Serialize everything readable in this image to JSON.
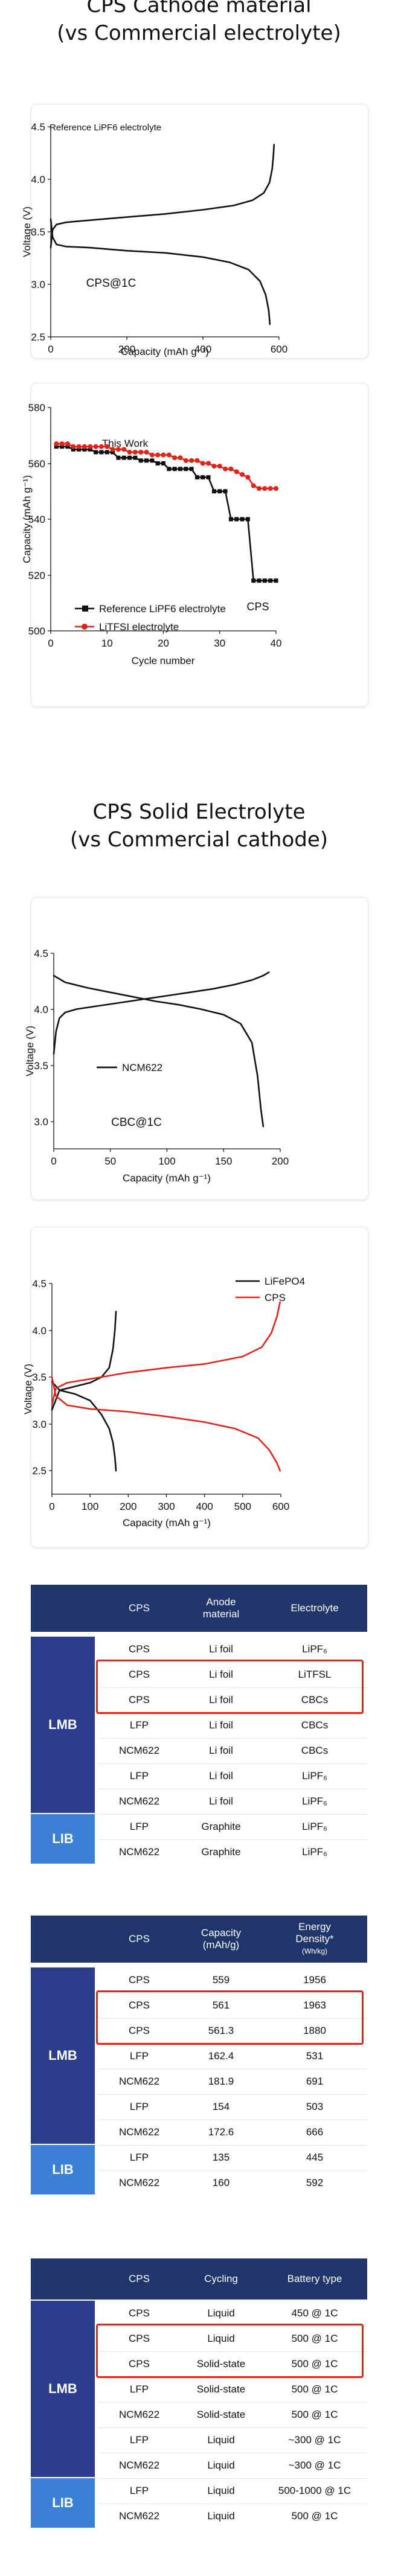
{
  "sections": {
    "cathode_title_1": "CPS Cathode material",
    "cathode_title_2": "(vs Commercial electrolyte)",
    "electrolyte_title_1": "CPS Solid Electrolyte",
    "electrolyte_title_2": "(vs Commercial cathode)"
  },
  "colors": {
    "navy": "#1f356b",
    "lmb": "#2b3d8c",
    "lib": "#3b7fd6",
    "red": "#e2231a",
    "black": "#111111"
  },
  "chart_data": [
    {
      "type": "line",
      "annotations": [
        "Reference LiPF6 electrolyte",
        "CPS@1C"
      ],
      "ylabel": "Voltage (V)",
      "xlabel": "Capacity  (mAh g⁻¹)",
      "xlim": [
        0,
        600
      ],
      "ylim": [
        2.5,
        4.5
      ],
      "xticks": [
        "0",
        "200",
        "400",
        "600"
      ],
      "yticks": [
        "2.5",
        "3.0",
        "3.5",
        "4.0",
        "4.5"
      ],
      "series": [
        {
          "role": "charge",
          "color": "#111111",
          "x": [
            0,
            5,
            15,
            40,
            100,
            200,
            300,
            400,
            480,
            530,
            560,
            575,
            582,
            585,
            587
          ],
          "y": [
            3.35,
            3.52,
            3.57,
            3.59,
            3.61,
            3.64,
            3.67,
            3.71,
            3.75,
            3.8,
            3.87,
            3.97,
            4.1,
            4.22,
            4.33
          ]
        },
        {
          "role": "discharge",
          "color": "#111111",
          "x": [
            0,
            5,
            15,
            40,
            100,
            200,
            300,
            400,
            470,
            520,
            550,
            565,
            573,
            576
          ],
          "y": [
            3.62,
            3.45,
            3.38,
            3.36,
            3.35,
            3.32,
            3.3,
            3.26,
            3.21,
            3.14,
            3.03,
            2.9,
            2.75,
            2.62
          ]
        }
      ]
    },
    {
      "type": "line",
      "title": "This Work",
      "annotations": [
        "CPS"
      ],
      "ylabel": "Capacity (mAh g⁻¹)",
      "xlabel": "Cycle number",
      "xlim": [
        0,
        40
      ],
      "ylim": [
        500,
        580
      ],
      "xticks": [
        "0",
        "10",
        "20",
        "30",
        "40"
      ],
      "yticks": [
        "500",
        "520",
        "540",
        "560",
        "580"
      ],
      "legend": "bottom-left",
      "series": [
        {
          "name": "Reference LiPF6 electrolyte",
          "color": "#111111",
          "marker": "square",
          "x": [
            1,
            2,
            3,
            4,
            5,
            6,
            7,
            8,
            9,
            10,
            11,
            12,
            13,
            14,
            15,
            16,
            17,
            18,
            19,
            20,
            21,
            22,
            23,
            24,
            25,
            26,
            27,
            28,
            29,
            30,
            31,
            32,
            33,
            34,
            35,
            36,
            37,
            38,
            39,
            40
          ],
          "y": [
            566,
            566,
            566,
            565,
            565,
            565,
            565,
            564,
            564,
            564,
            564,
            562,
            562,
            562,
            562,
            561,
            561,
            561,
            560,
            560,
            558,
            558,
            558,
            558,
            558,
            555,
            555,
            555,
            550,
            550,
            550,
            540,
            540,
            540,
            540,
            518,
            518,
            518,
            518,
            518
          ]
        },
        {
          "name": "LiTFSI electrolyte",
          "color": "#e2231a",
          "marker": "circle",
          "x": [
            1,
            2,
            3,
            4,
            5,
            6,
            7,
            8,
            9,
            10,
            11,
            12,
            13,
            14,
            15,
            16,
            17,
            18,
            19,
            20,
            21,
            22,
            23,
            24,
            25,
            26,
            27,
            28,
            29,
            30,
            31,
            32,
            33,
            34,
            35,
            36,
            37,
            38,
            39,
            40
          ],
          "y": [
            567,
            567,
            567,
            566,
            566,
            566,
            566,
            566,
            566,
            566,
            565,
            565,
            565,
            564,
            564,
            564,
            564,
            563,
            563,
            563,
            563,
            562,
            562,
            561,
            561,
            561,
            560,
            560,
            559,
            559,
            558,
            558,
            557,
            556,
            555,
            552,
            551,
            551,
            551,
            551
          ]
        }
      ]
    },
    {
      "type": "line",
      "annotations": [
        "NCM622",
        "CBC@1C"
      ],
      "ylabel": "Voltage (V)",
      "xlabel": "Capacity  (mAh g⁻¹)",
      "xlim": [
        0,
        200
      ],
      "ylim": [
        2.75,
        4.5
      ],
      "xticks": [
        "0",
        "50",
        "100",
        "150",
        "200"
      ],
      "yticks": [
        "3.0",
        "3.5",
        "4.0",
        "4.5"
      ],
      "series": [
        {
          "role": "charge",
          "color": "#111111",
          "x": [
            0,
            2,
            5,
            10,
            20,
            40,
            60,
            80,
            100,
            120,
            140,
            160,
            175,
            185,
            190
          ],
          "y": [
            3.6,
            3.8,
            3.92,
            3.97,
            4.0,
            4.03,
            4.06,
            4.09,
            4.12,
            4.15,
            4.18,
            4.22,
            4.26,
            4.3,
            4.33
          ]
        },
        {
          "role": "discharge",
          "color": "#111111",
          "x": [
            0,
            10,
            30,
            50,
            70,
            90,
            110,
            130,
            150,
            165,
            175,
            180,
            183,
            185
          ],
          "y": [
            4.3,
            4.24,
            4.19,
            4.15,
            4.11,
            4.07,
            4.04,
            4.0,
            3.95,
            3.87,
            3.7,
            3.4,
            3.1,
            2.95
          ]
        }
      ]
    },
    {
      "type": "line",
      "ylabel": "Voltage (V)",
      "xlabel": "Capacity  (mAh g⁻¹)",
      "xlim": [
        0,
        600
      ],
      "ylim": [
        2.25,
        4.5
      ],
      "xticks": [
        "0",
        "100",
        "200",
        "300",
        "400",
        "500",
        "600"
      ],
      "yticks": [
        "2.5",
        "3.0",
        "3.5",
        "4.0",
        "4.5"
      ],
      "legend": "top-right",
      "series": [
        {
          "name": "LiFePO4",
          "color": "#111111",
          "segments": [
            {
              "x": [
                0,
                20,
                60,
                100,
                130,
                150,
                160,
                165,
                168
              ],
              "y": [
                3.15,
                3.36,
                3.4,
                3.44,
                3.5,
                3.6,
                3.8,
                4.0,
                4.2
              ]
            },
            {
              "x": [
                0,
                20,
                60,
                100,
                130,
                150,
                160,
                165,
                168
              ],
              "y": [
                3.45,
                3.36,
                3.32,
                3.25,
                3.1,
                2.95,
                2.8,
                2.65,
                2.5
              ]
            }
          ]
        },
        {
          "name": "CPS",
          "color": "#e2231a",
          "segments": [
            {
              "x": [
                0,
                10,
                40,
                100,
                200,
                300,
                400,
                500,
                550,
                575,
                590,
                598
              ],
              "y": [
                3.2,
                3.38,
                3.44,
                3.48,
                3.55,
                3.6,
                3.64,
                3.72,
                3.82,
                3.97,
                4.15,
                4.3
              ]
            },
            {
              "x": [
                0,
                10,
                40,
                100,
                200,
                300,
                400,
                480,
                540,
                570,
                590,
                598
              ],
              "y": [
                3.5,
                3.3,
                3.2,
                3.16,
                3.13,
                3.08,
                3.02,
                2.95,
                2.85,
                2.72,
                2.58,
                2.5
              ]
            }
          ]
        }
      ]
    }
  ],
  "tables": [
    {
      "headers": [
        "CPS",
        "Anode\nmaterial",
        "Electrolyte"
      ],
      "group_lmb": "LMB",
      "group_lib": "LIB",
      "rows": [
        [
          "CPS",
          "Li foil",
          "LiPF₆"
        ],
        [
          "CPS",
          "Li foil",
          "LiTFSL"
        ],
        [
          "CPS",
          "Li foil",
          "CBCs"
        ],
        [
          "LFP",
          "Li foil",
          "CBCs"
        ],
        [
          "NCM622",
          "Li foil",
          "CBCs"
        ],
        [
          "LFP",
          "Li foil",
          "LiPF₆"
        ],
        [
          "NCM622",
          "Li foil",
          "LiPF₆"
        ],
        [
          "LFP",
          "Graphite",
          "LiPF₆"
        ],
        [
          "NCM622",
          "Graphite",
          "LiPF₆"
        ]
      ]
    },
    {
      "headers": [
        "CPS",
        "Capacity\n(mAh/g)",
        "Energy\nDensity*\n(Wh/kg)"
      ],
      "group_lmb": "LMB",
      "group_lib": "LIB",
      "rows": [
        [
          "559",
          "1956"
        ],
        [
          "561",
          "1963"
        ],
        [
          "561.3",
          "1880"
        ],
        [
          "162.4",
          "531"
        ],
        [
          "181.9",
          "691"
        ],
        [
          "154",
          "503"
        ],
        [
          "172.6",
          "666"
        ],
        [
          "135",
          "445"
        ],
        [
          "160",
          "592"
        ]
      ],
      "row_labels": [
        "CPS",
        "CPS",
        "CPS",
        "LFP",
        "NCM622",
        "LFP",
        "NCM622",
        "LFP",
        "NCM622"
      ]
    },
    {
      "headers": [
        "CPS",
        "Cycling",
        "Battery type"
      ],
      "group_lmb": "LMB",
      "group_lib": "LIB",
      "rows": [
        [
          "CPS",
          "Liquid",
          "450 @ 1C"
        ],
        [
          "CPS",
          "Liquid",
          "500 @ 1C"
        ],
        [
          "CPS",
          "Solid-state",
          "500 @ 1C"
        ],
        [
          "LFP",
          "Solid-state",
          "500 @ 1C"
        ],
        [
          "NCM622",
          "Solid-state",
          "500 @ 1C"
        ],
        [
          "LFP",
          "Liquid",
          "~300 @ 1C"
        ],
        [
          "NCM622",
          "Liquid",
          "~300 @ 1C"
        ],
        [
          "LFP",
          "Liquid",
          "500-1000 @ 1C"
        ],
        [
          "NCM622",
          "Liquid",
          "500 @ 1C"
        ]
      ]
    }
  ]
}
